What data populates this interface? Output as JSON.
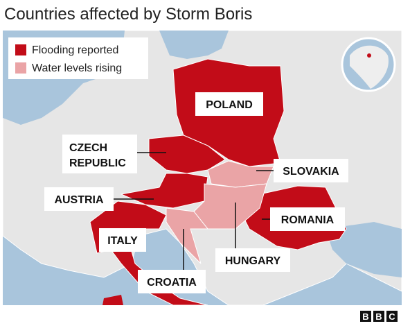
{
  "title": "Countries affected by Storm Boris",
  "legend": [
    {
      "label": "Flooding reported",
      "color": "#c20c18"
    },
    {
      "label": "Water levels rising",
      "color": "#eaa4a6"
    }
  ],
  "countries": [
    "POLAND",
    "CZECH REPUBLIC",
    "SLOVAKIA",
    "AUSTRIA",
    "ROMANIA",
    "ITALY",
    "HUNGARY",
    "CROATIA"
  ],
  "logo": [
    "B",
    "B",
    "C"
  ]
}
